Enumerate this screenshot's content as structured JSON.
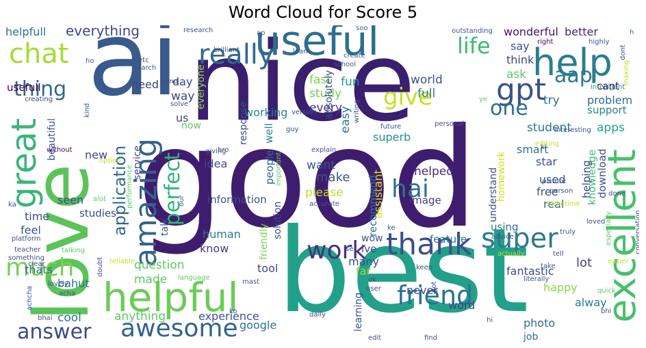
{
  "chart_data": {
    "type": "wordcloud",
    "title": "Word Cloud for Score 5",
    "colormap": "viridis",
    "background": "#ffffff",
    "words": [
      {
        "text": "good",
        "weight": 1.0,
        "color": "#3f1d6e"
      },
      {
        "text": "nice",
        "weight": 0.78,
        "color": "#3a1f6f"
      },
      {
        "text": "best",
        "weight": 0.6,
        "color": "#23a08a"
      },
      {
        "text": "ai",
        "weight": 0.55,
        "color": "#3a5a8c"
      },
      {
        "text": "love",
        "weight": 0.45,
        "color": "#5cc35a"
      },
      {
        "text": "useful",
        "weight": 0.26,
        "color": "#2d6f8e"
      },
      {
        "text": "helpful",
        "weight": 0.22,
        "color": "#6ccb58"
      },
      {
        "text": "excellent",
        "weight": 0.2,
        "color": "#48c06a"
      },
      {
        "text": "help",
        "weight": 0.15,
        "color": "#2a7d8e"
      },
      {
        "text": "great",
        "weight": 0.15,
        "color": "#3ab57a"
      },
      {
        "text": "amazing",
        "weight": 0.14,
        "color": "#32648e"
      },
      {
        "text": "thank",
        "weight": 0.12,
        "color": "#3d4e8a"
      },
      {
        "text": "super",
        "weight": 0.1,
        "color": "#2e7a8e"
      },
      {
        "text": "gpt",
        "weight": 0.11,
        "color": "#3a538b"
      },
      {
        "text": "chat",
        "weight": 0.09,
        "color": "#a5db36"
      },
      {
        "text": "awesome",
        "weight": 0.09,
        "color": "#33638d"
      },
      {
        "text": "much",
        "weight": 0.09,
        "color": "#7ad151"
      },
      {
        "text": "really",
        "weight": 0.09,
        "color": "#2f6b8e"
      },
      {
        "text": "friend",
        "weight": 0.08,
        "color": "#2c728e"
      },
      {
        "text": "work",
        "weight": 0.08,
        "color": "#46337e"
      },
      {
        "text": "answer",
        "weight": 0.07,
        "color": "#3e4989"
      },
      {
        "text": "thing",
        "weight": 0.07,
        "color": "#31688e"
      },
      {
        "text": "hai",
        "weight": 0.07,
        "color": "#2c738e"
      },
      {
        "text": "life",
        "weight": 0.06,
        "color": "#3ebc73"
      },
      {
        "text": "give",
        "weight": 0.06,
        "color": "#c5e021"
      },
      {
        "text": "one",
        "weight": 0.06,
        "color": "#2e6e8e"
      },
      {
        "text": "aap",
        "weight": 0.06,
        "color": "#2a788e"
      },
      {
        "text": "perfect",
        "weight": 0.06,
        "color": "#2fb47c"
      },
      {
        "text": "application",
        "weight": 0.05,
        "color": "#31688e"
      },
      {
        "text": "everything",
        "weight": 0.04,
        "color": "#3f4788"
      },
      {
        "text": "helpfull",
        "weight": 0.035,
        "color": "#2c728e"
      },
      {
        "text": "wonderful",
        "weight": 0.03,
        "color": "#471164"
      },
      {
        "text": "better",
        "weight": 0.03,
        "color": "#482475"
      },
      {
        "text": "say",
        "weight": 0.03,
        "color": "#3b528b"
      },
      {
        "text": "think",
        "weight": 0.03,
        "color": "#414487"
      },
      {
        "text": "fast",
        "weight": 0.03,
        "color": "#7ad151"
      },
      {
        "text": "study",
        "weight": 0.03,
        "color": "#6ece58"
      },
      {
        "text": "world",
        "weight": 0.03,
        "color": "#3b528b"
      },
      {
        "text": "full",
        "weight": 0.03,
        "color": "#2a788e"
      },
      {
        "text": "fun",
        "weight": 0.03,
        "color": "#1f9e89"
      },
      {
        "text": "absolutely",
        "weight": 0.028,
        "color": "#3f4788"
      },
      {
        "text": "easy",
        "weight": 0.03,
        "color": "#2c728e"
      },
      {
        "text": "every",
        "weight": 0.03,
        "color": "#433e85"
      },
      {
        "text": "working",
        "weight": 0.03,
        "color": "#25858e"
      },
      {
        "text": "response",
        "weight": 0.03,
        "color": "#3e4a89"
      },
      {
        "text": "student",
        "weight": 0.03,
        "color": "#2a788e"
      },
      {
        "text": "support",
        "weight": 0.03,
        "color": "#25848e"
      },
      {
        "text": "problem",
        "weight": 0.03,
        "color": "#2d708e"
      },
      {
        "text": "try",
        "weight": 0.03,
        "color": "#2d708e"
      },
      {
        "text": "ask",
        "weight": 0.03,
        "color": "#5ec962"
      },
      {
        "text": "cant",
        "weight": 0.025,
        "color": "#440154"
      },
      {
        "text": "knowledge",
        "weight": 0.03,
        "color": "#3dbc74"
      },
      {
        "text": "apps",
        "weight": 0.03,
        "color": "#20a386"
      },
      {
        "text": "smart",
        "weight": 0.03,
        "color": "#2a788e"
      },
      {
        "text": "superb",
        "weight": 0.03,
        "color": "#21918c"
      },
      {
        "text": "star",
        "weight": 0.03,
        "color": "#3b528b"
      },
      {
        "text": "used",
        "weight": 0.03,
        "color": "#3b528b"
      },
      {
        "text": "free",
        "weight": 0.03,
        "color": "#3b528b"
      },
      {
        "text": "helping",
        "weight": 0.03,
        "color": "#414487"
      },
      {
        "text": "download",
        "weight": 0.03,
        "color": "#3e4c8a"
      },
      {
        "text": "real",
        "weight": 0.03,
        "color": "#31688e"
      },
      {
        "text": "make",
        "weight": 0.03,
        "color": "#3b528b"
      },
      {
        "text": "want",
        "weight": 0.03,
        "color": "#3b528b"
      },
      {
        "text": "please",
        "weight": 0.03,
        "color": "#bddf26"
      },
      {
        "text": "image",
        "weight": 0.03,
        "color": "#453882"
      },
      {
        "text": "helped",
        "weight": 0.03,
        "color": "#482878"
      },
      {
        "text": "assistant",
        "weight": 0.03,
        "color": "#d8e219"
      },
      {
        "text": "recommend",
        "weight": 0.03,
        "color": "#2c728e"
      },
      {
        "text": "homework",
        "weight": 0.03,
        "color": "#d2e21b"
      },
      {
        "text": "understand",
        "weight": 0.03,
        "color": "#3b528b"
      },
      {
        "text": "lot",
        "weight": 0.03,
        "color": "#414487"
      },
      {
        "text": "fantastic",
        "weight": 0.03,
        "color": "#3e4a89"
      },
      {
        "text": "happy",
        "weight": 0.03,
        "color": "#86d549"
      },
      {
        "text": "alway",
        "weight": 0.03,
        "color": "#2a788e"
      },
      {
        "text": "photo",
        "weight": 0.03,
        "color": "#31688e"
      },
      {
        "text": "job",
        "weight": 0.025,
        "color": "#31688e"
      },
      {
        "text": "word",
        "weight": 0.03,
        "color": "#414487"
      },
      {
        "text": "feature",
        "weight": 0.03,
        "color": "#2d708e"
      },
      {
        "text": "using",
        "weight": 0.03,
        "color": "#2c728e"
      },
      {
        "text": "learning",
        "weight": 0.025,
        "color": "#3b528b"
      },
      {
        "text": "never",
        "weight": 0.03,
        "color": "#3b528b"
      },
      {
        "text": "far",
        "weight": 0.03,
        "color": "#a0da39"
      },
      {
        "text": "many",
        "weight": 0.03,
        "color": "#3e4c8a"
      },
      {
        "text": "ive",
        "weight": 0.03,
        "color": "#3e4a89"
      },
      {
        "text": "wow",
        "weight": 0.025,
        "color": "#3b528b"
      },
      {
        "text": "google",
        "weight": 0.03,
        "color": "#2c728e"
      },
      {
        "text": "experience",
        "weight": 0.03,
        "color": "#3b528b"
      },
      {
        "text": "human",
        "weight": 0.03,
        "color": "#2a788e"
      },
      {
        "text": "know",
        "weight": 0.03,
        "color": "#433e85"
      },
      {
        "text": "tool",
        "weight": 0.03,
        "color": "#3e4a89"
      },
      {
        "text": "friendly",
        "weight": 0.03,
        "color": "#7ad151"
      },
      {
        "text": "solution",
        "weight": 0.025,
        "color": "#3e4989"
      },
      {
        "text": "information",
        "weight": 0.03,
        "color": "#3b528b"
      },
      {
        "text": "people",
        "weight": 0.03,
        "color": "#31688e"
      },
      {
        "text": "well",
        "weight": 0.03,
        "color": "#25848e"
      },
      {
        "text": "idea",
        "weight": 0.03,
        "color": "#3e4a89"
      },
      {
        "text": "anything",
        "weight": 0.03,
        "color": "#5ec962"
      },
      {
        "text": "made",
        "weight": 0.03,
        "color": "#5ec962"
      },
      {
        "text": "question",
        "weight": 0.03,
        "color": "#5ec962"
      },
      {
        "text": "talk",
        "weight": 0.025,
        "color": "#3b528b"
      },
      {
        "text": "cool",
        "weight": 0.03,
        "color": "#2c728e"
      },
      {
        "text": "bahut",
        "weight": 0.03,
        "color": "#2c728e"
      },
      {
        "text": "thats",
        "weight": 0.03,
        "color": "#2c728e"
      },
      {
        "text": "feel",
        "weight": 0.03,
        "color": "#3b528b"
      },
      {
        "text": "studies",
        "weight": 0.03,
        "color": "#3e4a89"
      },
      {
        "text": "time",
        "weight": 0.03,
        "color": "#3e4a89"
      },
      {
        "text": "seen",
        "weight": 0.03,
        "color": "#3e4a89"
      },
      {
        "text": "new",
        "weight": 0.03,
        "color": "#3e4a89"
      },
      {
        "text": "beautiful",
        "weight": 0.025,
        "color": "#3b528b"
      },
      {
        "text": "service",
        "weight": 0.03,
        "color": "#414487"
      },
      {
        "text": "us",
        "weight": 0.03,
        "color": "#414487"
      },
      {
        "text": "now",
        "weight": 0.025,
        "color": "#5ec962"
      },
      {
        "text": "day",
        "weight": 0.03,
        "color": "#414487"
      },
      {
        "text": "way",
        "weight": 0.03,
        "color": "#414487"
      },
      {
        "text": "need",
        "weight": 0.03,
        "color": "#414487"
      },
      {
        "text": "everyone",
        "weight": 0.03,
        "color": "#8fd744"
      },
      {
        "text": "usefull",
        "weight": 0.03,
        "color": "#440154"
      },
      {
        "text": "research",
        "weight": 0.015,
        "color": "#3b528b"
      },
      {
        "text": "ap",
        "weight": 0.015,
        "color": "#31688e"
      },
      {
        "text": "soo",
        "weight": 0.015,
        "color": "#31688e"
      },
      {
        "text": "outstanding",
        "weight": 0.015,
        "color": "#3b528b"
      },
      {
        "text": "h",
        "weight": 0.015,
        "color": "#2c728e"
      },
      {
        "text": "right",
        "weight": 0.015,
        "color": "#440154"
      },
      {
        "text": "highly",
        "weight": 0.015,
        "color": "#3b528b"
      },
      {
        "text": "brilliant",
        "weight": 0.015,
        "color": "#3e4a89"
      },
      {
        "text": "learn",
        "weight": 0.015,
        "color": "#3e4a89"
      },
      {
        "text": "create",
        "weight": 0.015,
        "color": "#3b528b"
      },
      {
        "text": "school",
        "weight": 0.015,
        "color": "#3b528b"
      },
      {
        "text": "dont",
        "weight": 0.015,
        "color": "#3b528b"
      },
      {
        "text": "making",
        "weight": 0.015,
        "color": "#c2df23"
      },
      {
        "text": "intelligent",
        "weight": 0.015,
        "color": "#21918c"
      },
      {
        "text": "future",
        "weight": 0.015,
        "color": "#3b528b"
      },
      {
        "text": "personal",
        "weight": 0.015,
        "color": "#3b528b"
      },
      {
        "text": "editing",
        "weight": 0.015,
        "color": "#c2df23"
      },
      {
        "text": "ye",
        "weight": 0.015,
        "color": "#5ec962"
      },
      {
        "text": "writing",
        "weight": 0.015,
        "color": "#3b528b"
      },
      {
        "text": "version",
        "weight": 0.015,
        "color": "#3b528b"
      },
      {
        "text": "guy",
        "weight": 0.015,
        "color": "#3b528b"
      },
      {
        "text": "interesting",
        "weight": 0.015,
        "color": "#3b528b"
      },
      {
        "text": "ho",
        "weight": 0.015,
        "color": "#3e4a89"
      },
      {
        "text": "etc",
        "weight": 0.015,
        "color": "#3b528b"
      },
      {
        "text": "search",
        "weight": 0.015,
        "color": "#3b528b"
      },
      {
        "text": "mind",
        "weight": 0.015,
        "color": "#3e4a89"
      },
      {
        "text": "creating",
        "weight": 0.015,
        "color": "#3e4a89"
      },
      {
        "text": "solve",
        "weight": 0.015,
        "color": "#3b528b"
      },
      {
        "text": "kind",
        "weight": 0.015,
        "color": "#3b528b"
      },
      {
        "text": "without",
        "weight": 0.015,
        "color": "#440154"
      },
      {
        "text": "option",
        "weight": 0.015,
        "color": "#c2df23"
      },
      {
        "text": "explain",
        "weight": 0.015,
        "color": "#3b528b"
      },
      {
        "text": "giving",
        "weight": 0.015,
        "color": "#3b528b"
      },
      {
        "text": "bro",
        "weight": 0.015,
        "color": "#3b528b"
      },
      {
        "text": "important",
        "weight": 0.015,
        "color": "#5ec962"
      },
      {
        "text": "performance",
        "weight": 0.015,
        "color": "#5ec962"
      },
      {
        "text": "our",
        "weight": 0.015,
        "color": "#3b528b"
      },
      {
        "text": "ki",
        "weight": 0.015,
        "color": "#3b528b"
      },
      {
        "text": "picture",
        "weight": 0.015,
        "color": "#3b528b"
      },
      {
        "text": "person",
        "weight": 0.015,
        "color": "#3b528b"
      },
      {
        "text": "sometime",
        "weight": 0.015,
        "color": "#c2df23"
      },
      {
        "text": "ka",
        "weight": 0.015,
        "color": "#3b528b"
      },
      {
        "text": "alot",
        "weight": 0.015,
        "color": "#5ec962"
      },
      {
        "text": "accurate",
        "weight": 0.015,
        "color": "#3b528b"
      },
      {
        "text": "done",
        "weight": 0.015,
        "color": "#3b528b"
      },
      {
        "text": "especially",
        "weight": 0.015,
        "color": "#5ec962"
      },
      {
        "text": "loved",
        "weight": 0.015,
        "color": "#3b528b"
      },
      {
        "text": "conversation",
        "weight": 0.015,
        "color": "#3b528b"
      },
      {
        "text": "platform",
        "weight": 0.015,
        "color": "#3e4a89"
      },
      {
        "text": "teacher",
        "weight": 0.015,
        "color": "#3e4a89"
      },
      {
        "text": "something",
        "weight": 0.015,
        "color": "#3e4a89"
      },
      {
        "text": "talking",
        "weight": 0.015,
        "color": "#5ec962"
      },
      {
        "text": "clear",
        "weight": 0.015,
        "color": "#3b528b"
      },
      {
        "text": "se",
        "weight": 0.015,
        "color": "#3b528b"
      },
      {
        "text": "ke",
        "weight": 0.015,
        "color": "#3b528b"
      },
      {
        "text": "truly",
        "weight": 0.015,
        "color": "#3b528b"
      },
      {
        "text": "advice",
        "weight": 0.015,
        "color": "#3b528b"
      },
      {
        "text": "actually",
        "weight": 0.015,
        "color": "#c2df23"
      },
      {
        "text": "tell",
        "weight": 0.015,
        "color": "#3b528b"
      },
      {
        "text": "easier",
        "weight": 0.015,
        "color": "#c2df23"
      },
      {
        "text": "keep",
        "weight": 0.015,
        "color": "#3b528b"
      },
      {
        "text": "take",
        "weight": 0.015,
        "color": "#3b528b"
      },
      {
        "text": "reliable",
        "weight": 0.015,
        "color": "#c2df23"
      },
      {
        "text": "language",
        "weight": 0.015,
        "color": "#5ec962"
      },
      {
        "text": "doubt",
        "weight": 0.015,
        "color": "#3b528b"
      },
      {
        "text": "lovely",
        "weight": 0.015,
        "color": "#3b528b"
      },
      {
        "text": "acha",
        "weight": 0.015,
        "color": "#3b528b"
      },
      {
        "text": "mast",
        "weight": 0.015,
        "color": "#3b528b"
      },
      {
        "text": "ok",
        "weight": 0.015,
        "color": "#3b528b"
      },
      {
        "text": "user",
        "weight": 0.015,
        "color": "#3b528b"
      },
      {
        "text": "got",
        "weight": 0.015,
        "color": "#3b528b"
      },
      {
        "text": "literally",
        "weight": 0.015,
        "color": "#3b528b"
      },
      {
        "text": "quick",
        "weight": 0.015,
        "color": "#5ec962"
      },
      {
        "text": "bhi",
        "weight": 0.015,
        "color": "#3b528b"
      },
      {
        "text": "achcha",
        "weight": 0.015,
        "color": "#3b528b"
      },
      {
        "text": "bhai",
        "weight": 0.015,
        "color": "#3b528b"
      },
      {
        "text": "ko",
        "weight": 0.015,
        "color": "#3b528b"
      },
      {
        "text": "daily",
        "weight": 0.015,
        "color": "#3b528b"
      },
      {
        "text": "edit",
        "weight": 0.015,
        "color": "#3b528b"
      },
      {
        "text": "find",
        "weight": 0.015,
        "color": "#3b528b"
      },
      {
        "text": "hi",
        "weight": 0.015,
        "color": "#3b528b"
      }
    ]
  }
}
